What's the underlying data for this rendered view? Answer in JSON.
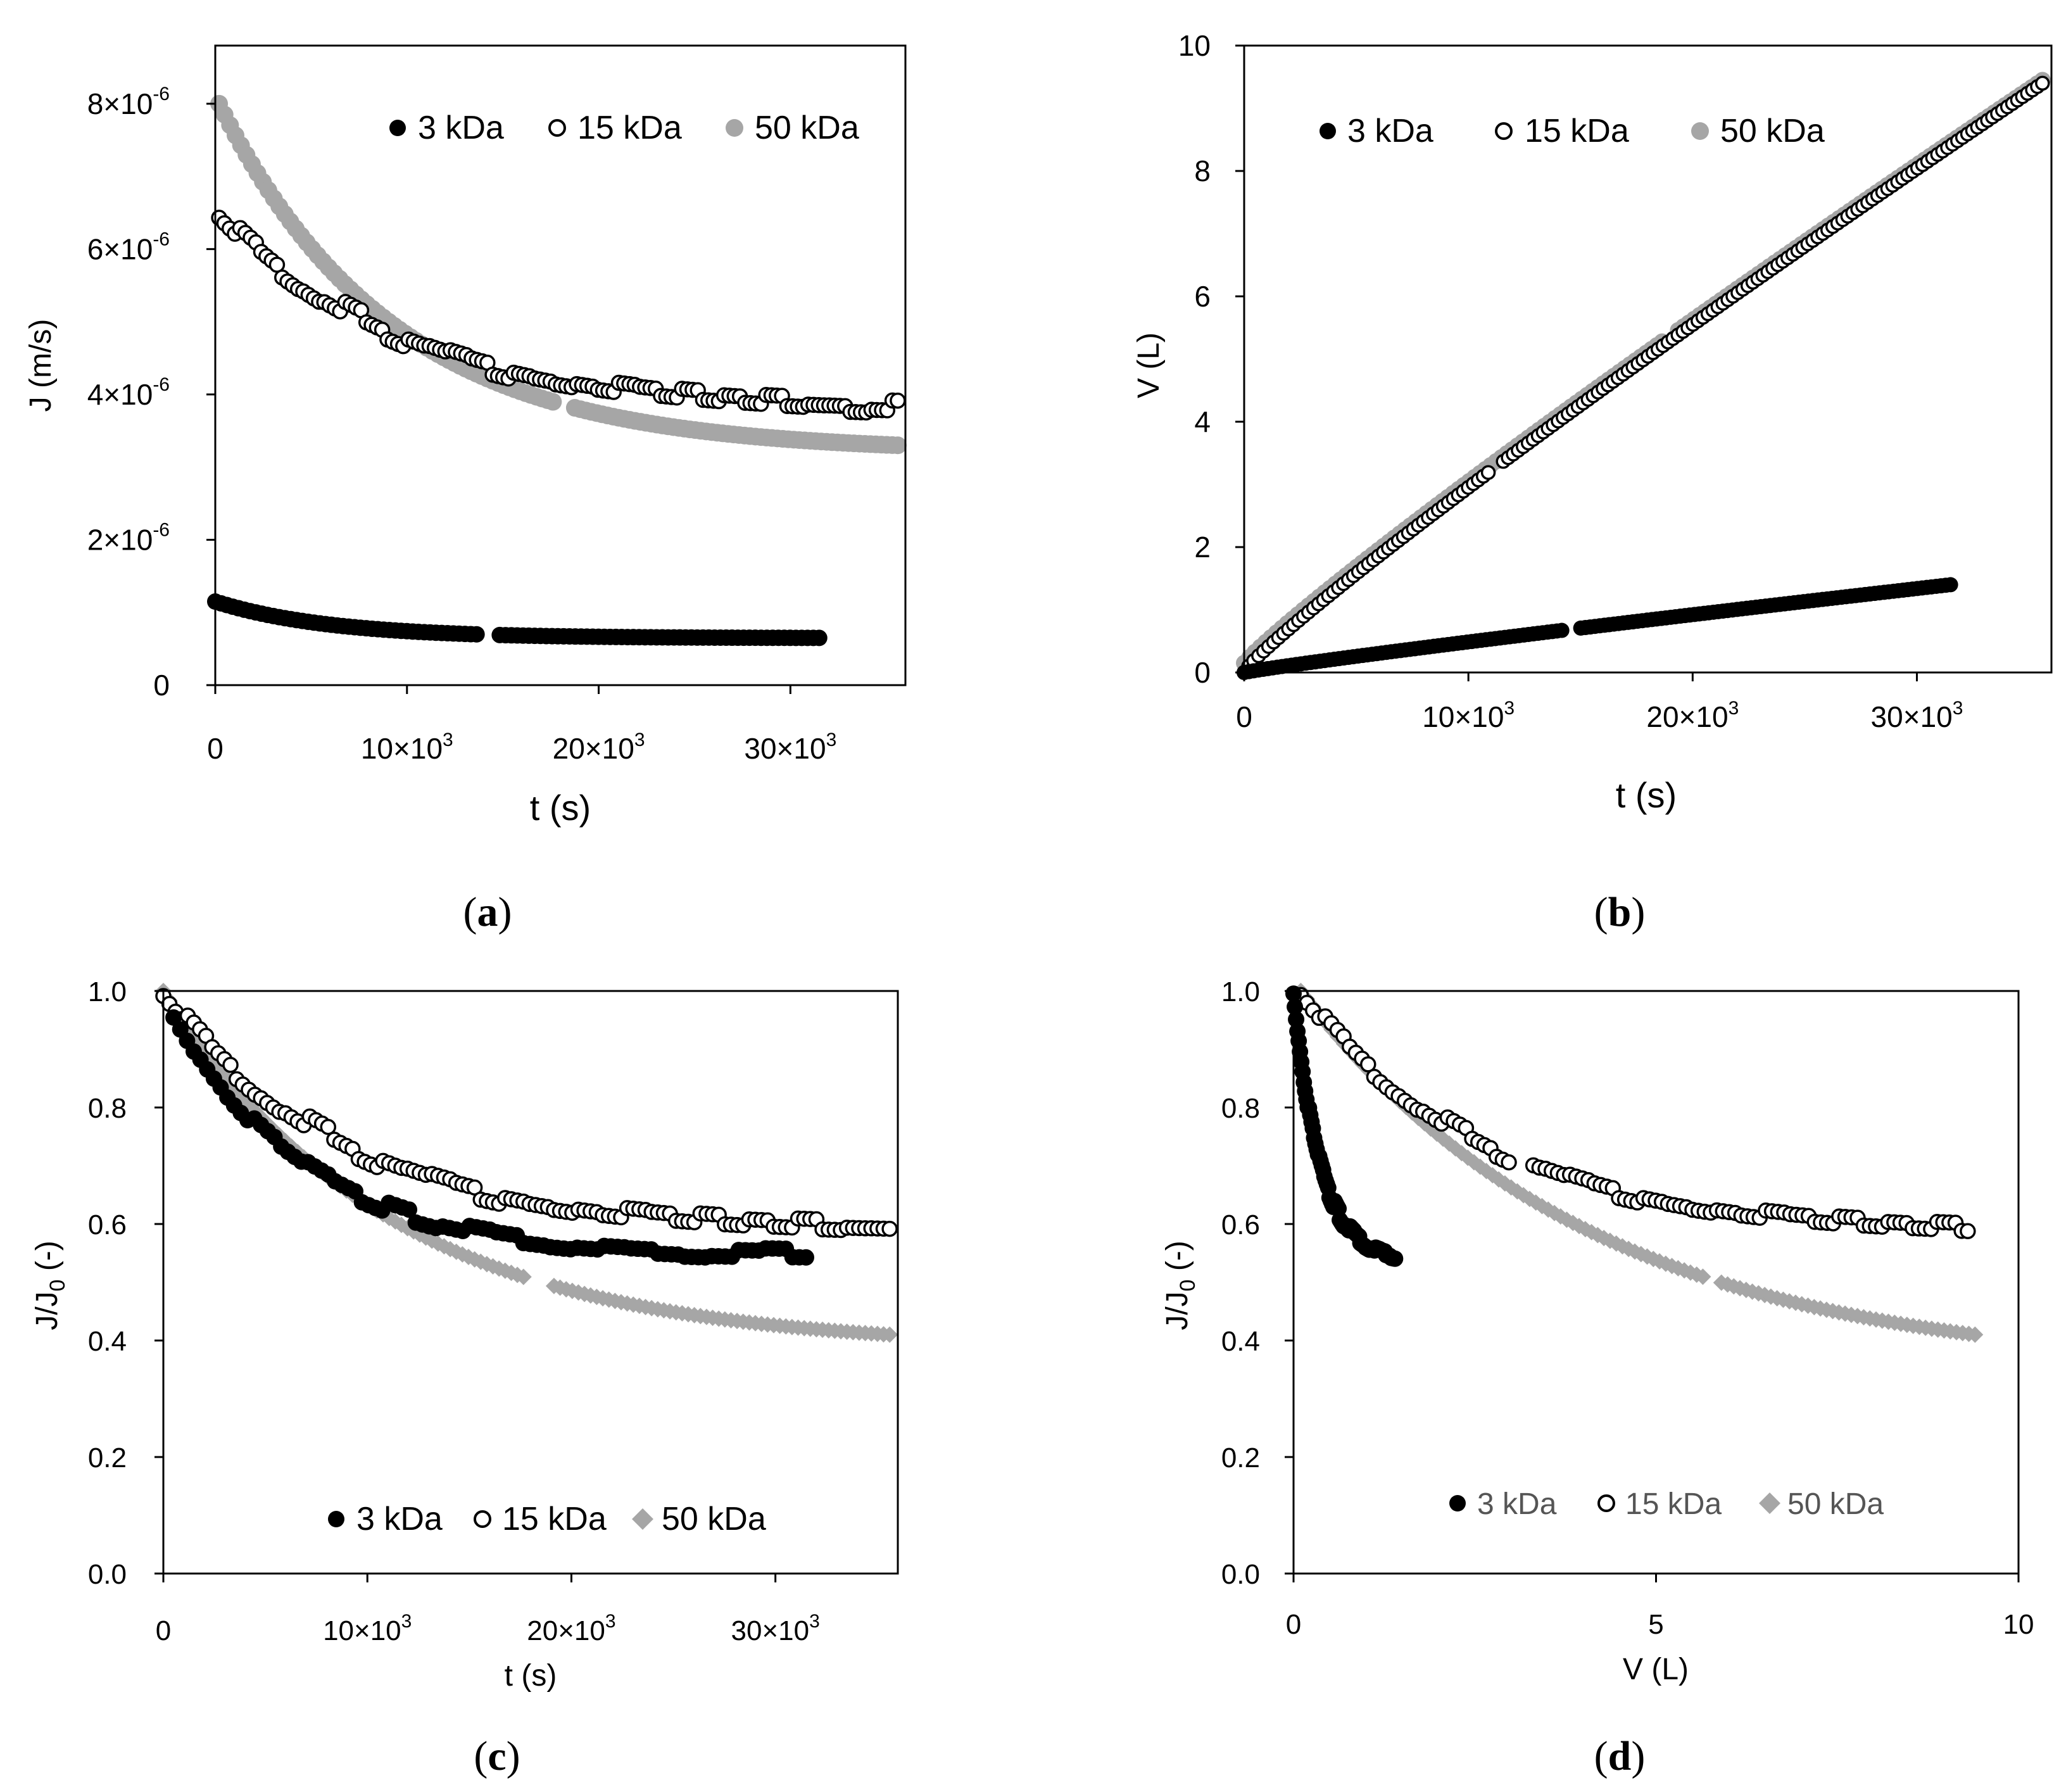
{
  "figure": {
    "panels": [
      "(a)",
      "(b)",
      "(c)",
      "(d)"
    ]
  },
  "colors": {
    "s3": "#000000",
    "s15_stroke": "#000000",
    "s15_fill": "#ffffff",
    "s50": "#a6a6a6"
  },
  "chart_data": [
    {
      "panel": "(a)",
      "type": "scatter",
      "xlabel": "t (s)",
      "ylabel": "J (m/s)",
      "xlim": [
        0,
        36000
      ],
      "ylim": [
        0,
        8.8e-06
      ],
      "xticks": [
        {
          "value": 0,
          "mant": "0",
          "exp": ""
        },
        {
          "value": 10000,
          "mant": "10×10",
          "exp": "3"
        },
        {
          "value": 20000,
          "mant": "20×10",
          "exp": "3"
        },
        {
          "value": 30000,
          "mant": "30×10",
          "exp": "3"
        }
      ],
      "yticks": [
        {
          "value": 0,
          "mant": "0",
          "exp": ""
        },
        {
          "value": 2e-06,
          "mant": "2×10",
          "exp": "-6"
        },
        {
          "value": 4e-06,
          "mant": "4×10",
          "exp": "-6"
        },
        {
          "value": 6e-06,
          "mant": "6×10",
          "exp": "-6"
        },
        {
          "value": 8e-06,
          "mant": "8×10",
          "exp": "-6"
        }
      ],
      "legend": [
        "3 kDa",
        "15 kDa",
        "50 kDa"
      ],
      "legend_position": "top-right",
      "series": [
        {
          "name": "3 kDa",
          "x_start": 0,
          "x_end": 31500,
          "y0": 1.15e-06,
          "y_end": 6.5e-07,
          "k": 6000,
          "n": 105,
          "gap": [
            13800,
            14800
          ]
        },
        {
          "name": "15 kDa",
          "x_start": 200,
          "x_end": 35600,
          "y0": 6.5e-06,
          "y_end": 3.8e-06,
          "k": 10000,
          "n": 130,
          "jitter": 1.2e-07
        },
        {
          "name": "50 kDa",
          "x_start": 200,
          "x_end": 35600,
          "y0": 8e-06,
          "y_end": 3.3e-06,
          "k": 9000,
          "n": 125,
          "gap": [
            17800,
            18600
          ]
        }
      ]
    },
    {
      "panel": "(b)",
      "type": "scatter",
      "xlabel": "t (s)",
      "ylabel": "V (L)",
      "xlim": [
        0,
        36000
      ],
      "ylim": [
        0,
        10
      ],
      "xticks": [
        {
          "value": 0,
          "mant": "0",
          "exp": ""
        },
        {
          "value": 10000,
          "mant": "10×10",
          "exp": "3"
        },
        {
          "value": 20000,
          "mant": "20×10",
          "exp": "3"
        },
        {
          "value": 30000,
          "mant": "30×10",
          "exp": "3"
        }
      ],
      "yticks": [
        {
          "value": 0,
          "label": "0"
        },
        {
          "value": 2,
          "label": "2"
        },
        {
          "value": 4,
          "label": "4"
        },
        {
          "value": 6,
          "label": "6"
        },
        {
          "value": 8,
          "label": "8"
        },
        {
          "value": 10,
          "label": "10"
        }
      ],
      "legend": [
        "3 kDa",
        "15 kDa",
        "50 kDa"
      ],
      "legend_position": "top-left",
      "series": [
        {
          "name": "3 kDa",
          "x_start": 0,
          "x_end": 31500,
          "y_start": 0,
          "y_end": 1.4,
          "n": 150,
          "gap": [
            14300,
            14900
          ]
        },
        {
          "name": "15 kDa",
          "x_start": 200,
          "x_end": 35600,
          "y_start": 0.1,
          "y_end": 9.4,
          "n": 160,
          "gap": [
            11000,
            11500
          ]
        },
        {
          "name": "50 kDa",
          "x_start": 0,
          "x_end": 35600,
          "y_start": 0.15,
          "y_end": 9.45,
          "n": 150,
          "gap": [
            18700,
            19300
          ]
        }
      ]
    },
    {
      "panel": "(c)",
      "type": "scatter",
      "xlabel": "t (s)",
      "ylabel_main": "J/J",
      "ylabel_sub": "0",
      "ylabel_unit": " (-)",
      "xlim": [
        0,
        36000
      ],
      "ylim": [
        0,
        1.0
      ],
      "xticks": [
        {
          "value": 0,
          "mant": "0",
          "exp": ""
        },
        {
          "value": 10000,
          "mant": "10×10",
          "exp": "3"
        },
        {
          "value": 20000,
          "mant": "20×10",
          "exp": "3"
        },
        {
          "value": 30000,
          "mant": "30×10",
          "exp": "3"
        }
      ],
      "yticks": [
        {
          "value": 0,
          "label": "0.0"
        },
        {
          "value": 0.2,
          "label": "0.2"
        },
        {
          "value": 0.4,
          "label": "0.4"
        },
        {
          "value": 0.6,
          "label": "0.6"
        },
        {
          "value": 0.8,
          "label": "0.8"
        },
        {
          "value": 1.0,
          "label": "1.0"
        }
      ],
      "legend": [
        "3 kDa",
        "15 kDa",
        "50 kDa"
      ],
      "legend_position": "bottom",
      "series": [
        {
          "name": "3 kDa",
          "x_start": 500,
          "x_end": 31500,
          "y0": 0.96,
          "y_end": 0.55,
          "k": 6500,
          "n": 95,
          "jitter": 0.012
        },
        {
          "name": "15 kDa",
          "x_start": 0,
          "x_end": 35600,
          "y0": 1.0,
          "y_end": 0.59,
          "k": 9000,
          "n": 120,
          "jitter": 0.015
        },
        {
          "name": "50 kDa",
          "x_start": 0,
          "x_end": 35600,
          "y0": 1.0,
          "y_end": 0.41,
          "k": 11000,
          "n": 120,
          "gap": [
            17800,
            19000
          ]
        }
      ]
    },
    {
      "panel": "(d)",
      "type": "scatter",
      "xlabel": "V (L)",
      "ylabel_main": "J/J",
      "ylabel_sub": "0",
      "ylabel_unit": " (-)",
      "xlim": [
        0,
        10
      ],
      "ylim": [
        0,
        1.0
      ],
      "xticks": [
        {
          "value": 0,
          "mant": "0",
          "exp": ""
        },
        {
          "value": 5,
          "mant": "5",
          "exp": ""
        },
        {
          "value": 10,
          "mant": "10",
          "exp": ""
        }
      ],
      "yticks": [
        {
          "value": 0,
          "label": "0.0"
        },
        {
          "value": 0.2,
          "label": "0.2"
        },
        {
          "value": 0.4,
          "label": "0.4"
        },
        {
          "value": 0.6,
          "label": "0.6"
        },
        {
          "value": 0.8,
          "label": "0.8"
        },
        {
          "value": 1.0,
          "label": "1.0"
        }
      ],
      "legend": [
        "3 kDa",
        "15 kDa",
        "50 kDa"
      ],
      "legend_position": "bottom",
      "series": [
        {
          "name": "3 kDa",
          "x_start": 0,
          "x_end": 1.4,
          "y0": 1.0,
          "y_end": 0.55,
          "k": 0.35,
          "n": 80,
          "jitter": 0.01
        },
        {
          "name": "15 kDa",
          "x_start": 0.1,
          "x_end": 9.3,
          "y0": 1.0,
          "y_end": 0.59,
          "k": 2.6,
          "n": 110,
          "jitter": 0.012,
          "gap": [
            3.0,
            3.3
          ]
        },
        {
          "name": "50 kDa",
          "x_start": 0.1,
          "x_end": 9.4,
          "y0": 1.0,
          "y_end": 0.41,
          "k": 4.0,
          "n": 110,
          "gap": [
            5.7,
            5.9
          ]
        }
      ]
    }
  ]
}
